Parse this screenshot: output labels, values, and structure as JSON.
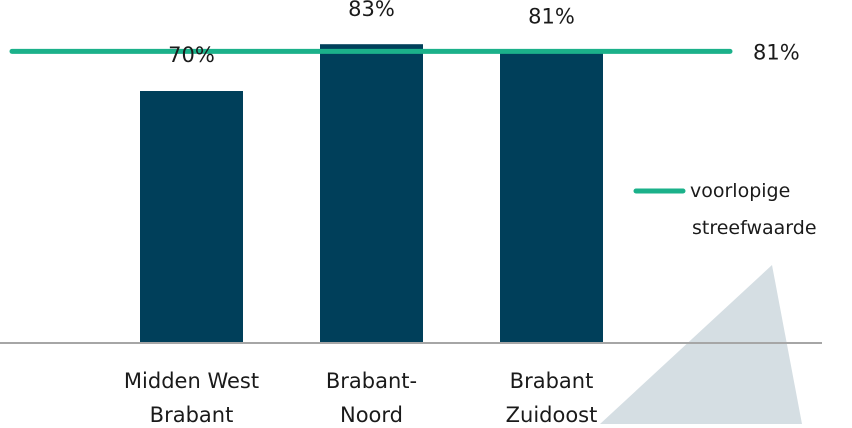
{
  "chart_data": {
    "type": "bar",
    "categories": [
      [
        "Midden West",
        "Brabant"
      ],
      [
        "Brabant-",
        "Noord"
      ],
      [
        "Brabant",
        "Zuidoost"
      ]
    ],
    "values": [
      70,
      83,
      81
    ],
    "value_labels": [
      "70%",
      "83%",
      "81%"
    ],
    "ylim": [
      0,
      90
    ],
    "grid": false,
    "reference_line": {
      "value": 81,
      "label": "81%",
      "legend_label": [
        "voorlopige",
        "streefwaarde"
      ]
    },
    "legend_placement": "right",
    "colors": {
      "bar": "#003f5a",
      "reference_line": "#1bb18a",
      "axis": "#a6a6a6",
      "decor_triangle": "#d5dee3"
    }
  }
}
